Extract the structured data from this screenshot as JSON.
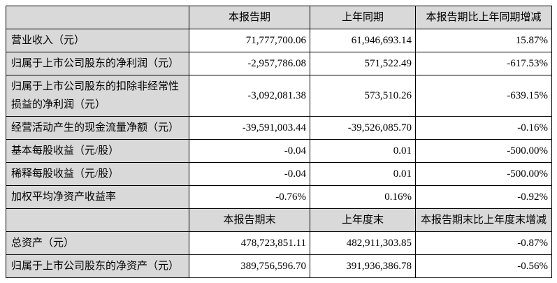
{
  "colors": {
    "header_bg": "#d9d9d9",
    "border": "#000000",
    "text": "#000000"
  },
  "table": {
    "header1": {
      "label": "",
      "cols": [
        "本报告期",
        "上年同期",
        "本报告期比上年同期增减"
      ]
    },
    "rows1": [
      {
        "label": "营业收入（元）",
        "current": "71,777,700.06",
        "prior": "61,946,693.14",
        "change": "15.87%"
      },
      {
        "label": "归属于上市公司股东的净利润（元）",
        "current": "-2,957,786.08",
        "prior": "571,522.49",
        "change": "-617.53%"
      },
      {
        "label": "归属于上市公司股东的扣除非经常性损益的净利润（元）",
        "current": "-3,092,081.38",
        "prior": "573,510.26",
        "change": "-639.15%"
      },
      {
        "label": "经营活动产生的现金流量净额（元）",
        "current": "-39,591,003.44",
        "prior": "-39,526,085.70",
        "change": "-0.16%"
      },
      {
        "label": "基本每股收益（元/股）",
        "current": "-0.04",
        "prior": "0.01",
        "change": "-500.00%"
      },
      {
        "label": "稀释每股收益（元/股）",
        "current": "-0.04",
        "prior": "0.01",
        "change": "-500.00%"
      },
      {
        "label": "加权平均净资产收益率",
        "current": "-0.76%",
        "prior": "0.16%",
        "change": "-0.92%"
      }
    ],
    "header2": {
      "label": "",
      "cols": [
        "本报告期末",
        "上年度末",
        "本报告期末比上年度末增减"
      ]
    },
    "rows2": [
      {
        "label": "总资产（元）",
        "current": "478,723,851.11",
        "prior": "482,911,303.85",
        "change": "-0.87%"
      },
      {
        "label": "归属于上市公司股东的净资产（元）",
        "current": "389,756,596.70",
        "prior": "391,936,386.78",
        "change": "-0.56%"
      }
    ]
  }
}
